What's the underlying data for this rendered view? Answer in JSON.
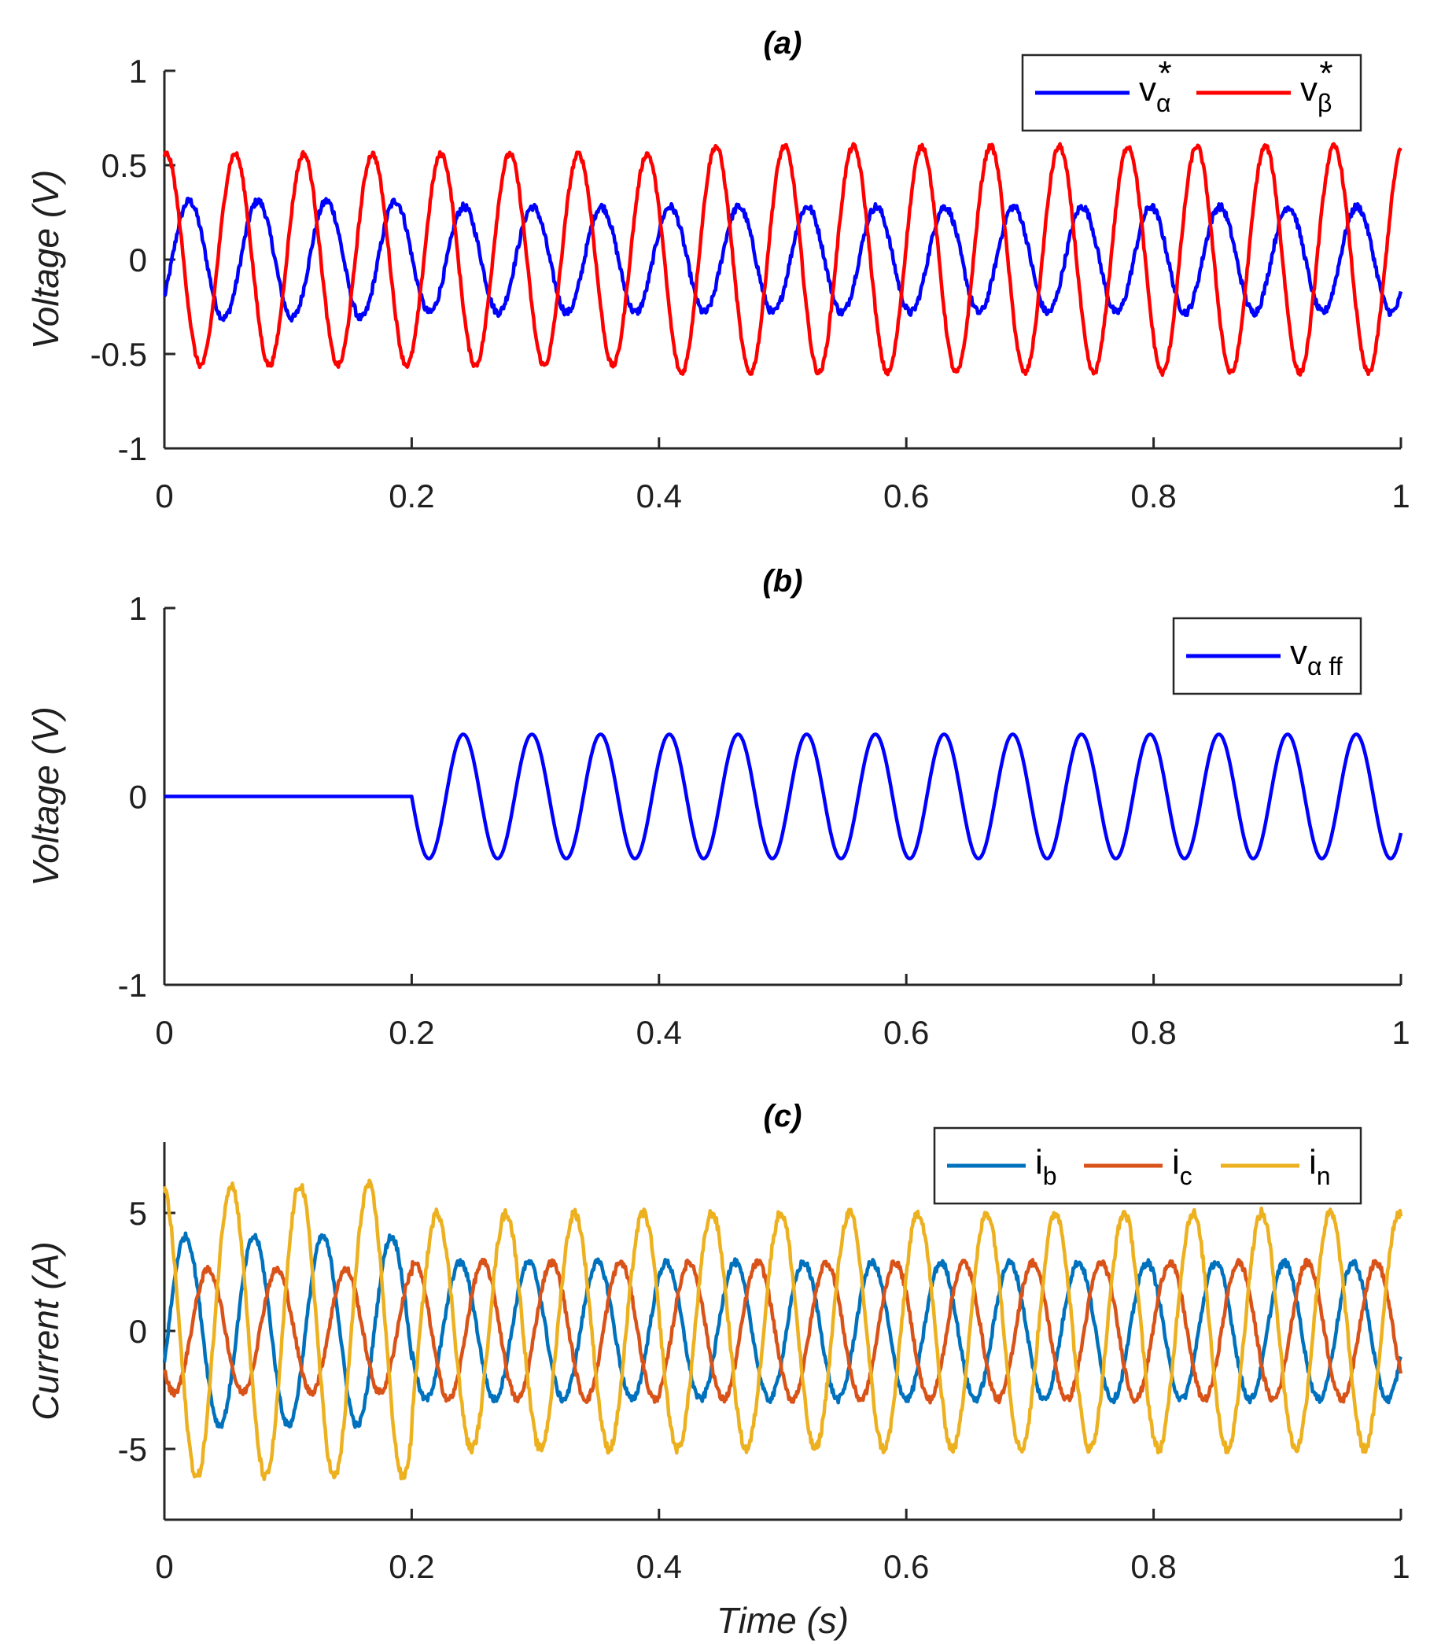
{
  "chart_data": [
    {
      "type": "line",
      "title": "(a)",
      "xlabel": "",
      "ylabel": "Voltage (V)",
      "xlim": [
        0,
        1
      ],
      "ylim": [
        -1,
        1
      ],
      "xticks": [
        "0",
        "0.2",
        "0.4",
        "0.6",
        "0.8",
        "1"
      ],
      "yticks": [
        "-1",
        "-0.5",
        "0",
        "0.5",
        "1"
      ],
      "legend_position": "top-right",
      "series": [
        {
          "name": "vα*",
          "label_main": "v",
          "label_sub": "α",
          "label_sup": "*",
          "color": "#0000ff",
          "frequency_hz": 18,
          "phase_deg": -40,
          "amplitude_segments": [
            {
              "x": [
                0,
                0.2
              ],
              "amplitude": 0.31
            },
            {
              "x": [
                0.2,
                1
              ],
              "amplitude": 0.28
            }
          ],
          "noise": 0.02
        },
        {
          "name": "vβ*",
          "label_main": "v",
          "label_sub": "β",
          "label_sup": "*",
          "color": "#ff0000",
          "frequency_hz": 18,
          "phase_deg": 80,
          "amplitude_segments": [
            {
              "x": [
                0,
                0.4
              ],
              "amplitude": 0.56
            },
            {
              "x": [
                0.4,
                1
              ],
              "amplitude": 0.6
            }
          ],
          "noise": 0.015
        }
      ]
    },
    {
      "type": "line",
      "title": "(b)",
      "xlabel": "",
      "ylabel": "Voltage (V)",
      "xlim": [
        0,
        1
      ],
      "ylim": [
        -1,
        1
      ],
      "xticks": [
        "0",
        "0.2",
        "0.4",
        "0.6",
        "0.8",
        "1"
      ],
      "yticks": [
        "-1",
        "0",
        "1"
      ],
      "legend_position": "top-right",
      "series": [
        {
          "name": "vα ff",
          "label_main": "v",
          "label_sub": "α ff",
          "label_sup": "",
          "color": "#0000ff",
          "frequency_hz": 18,
          "phase_deg": 180,
          "start_x": 0.2,
          "amplitude_segments": [
            {
              "x": [
                0,
                0.2
              ],
              "amplitude": 0
            },
            {
              "x": [
                0.2,
                1
              ],
              "amplitude": 0.33
            }
          ],
          "noise": 0
        }
      ]
    },
    {
      "type": "line",
      "title": "(c)",
      "xlabel": "Time (s)",
      "ylabel": "Current (A)",
      "xlim": [
        0,
        1
      ],
      "ylim": [
        -8,
        8
      ],
      "xticks": [
        "0",
        "0.2",
        "0.4",
        "0.6",
        "0.8",
        "1"
      ],
      "yticks": [
        "-5",
        "0",
        "5"
      ],
      "legend_position": "top-right",
      "series": [
        {
          "name": "ib",
          "label_main": "i",
          "label_sub": "b",
          "label_sup": "",
          "color": "#0072bd",
          "frequency_hz": 18,
          "phase_deg": -20,
          "amplitude_segments": [
            {
              "x": [
                0,
                0.2
              ],
              "amplitude": 4.0
            },
            {
              "x": [
                0.2,
                1
              ],
              "amplitude": 2.9
            }
          ],
          "noise": 0.15
        },
        {
          "name": "ic",
          "label_main": "i",
          "label_sub": "c",
          "label_sup": "",
          "color": "#d95319",
          "frequency_hz": 18,
          "phase_deg": 220,
          "amplitude_segments": [
            {
              "x": [
                0,
                0.2
              ],
              "amplitude": 2.6
            },
            {
              "x": [
                0.2,
                1
              ],
              "amplitude": 2.9
            }
          ],
          "noise": 0.15
        },
        {
          "name": "in",
          "label_main": "i",
          "label_sub": "n",
          "label_sup": "",
          "color": "#edb120",
          "frequency_hz": 18,
          "phase_deg": 100,
          "amplitude_segments": [
            {
              "x": [
                0,
                0.2
              ],
              "amplitude": 6.2
            },
            {
              "x": [
                0.2,
                1
              ],
              "amplitude": 5.0
            }
          ],
          "noise": 0.2
        }
      ]
    }
  ]
}
